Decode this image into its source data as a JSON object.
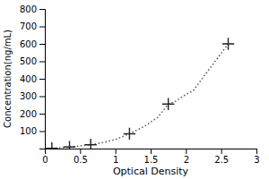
{
  "chart_data": {
    "type": "line",
    "xlabel": "Optical Density",
    "ylabel": "Concentration(ng/mL)",
    "xlim": [
      0,
      3
    ],
    "ylim": [
      0,
      800
    ],
    "xticks": [
      0,
      0.5,
      1,
      1.5,
      2,
      2.5,
      3
    ],
    "yticks": [
      100,
      200,
      300,
      400,
      500,
      600,
      700,
      800
    ],
    "grid": false,
    "series": [
      {
        "type": "line",
        "line_style": "dotted",
        "color": "#555555",
        "x": [
          0.1,
          0.15,
          0.2,
          0.3,
          0.35,
          0.45,
          0.5,
          0.6,
          0.65,
          0.8,
          1.0,
          1.2,
          1.4,
          1.6,
          1.75,
          1.85,
          2.0,
          2.1,
          2.6
        ],
        "values": [
          2,
          3,
          4,
          7,
          9,
          13,
          15,
          20,
          22,
          32,
          52,
          85,
          125,
          178,
          255,
          270,
          310,
          330,
          600
        ]
      },
      {
        "type": "scatter",
        "marker": "plus",
        "color": "#222222",
        "x": [
          0.1,
          0.35,
          0.65,
          1.2,
          1.75,
          2.6
        ],
        "values": [
          2,
          9,
          22,
          85,
          255,
          600
        ]
      }
    ]
  }
}
